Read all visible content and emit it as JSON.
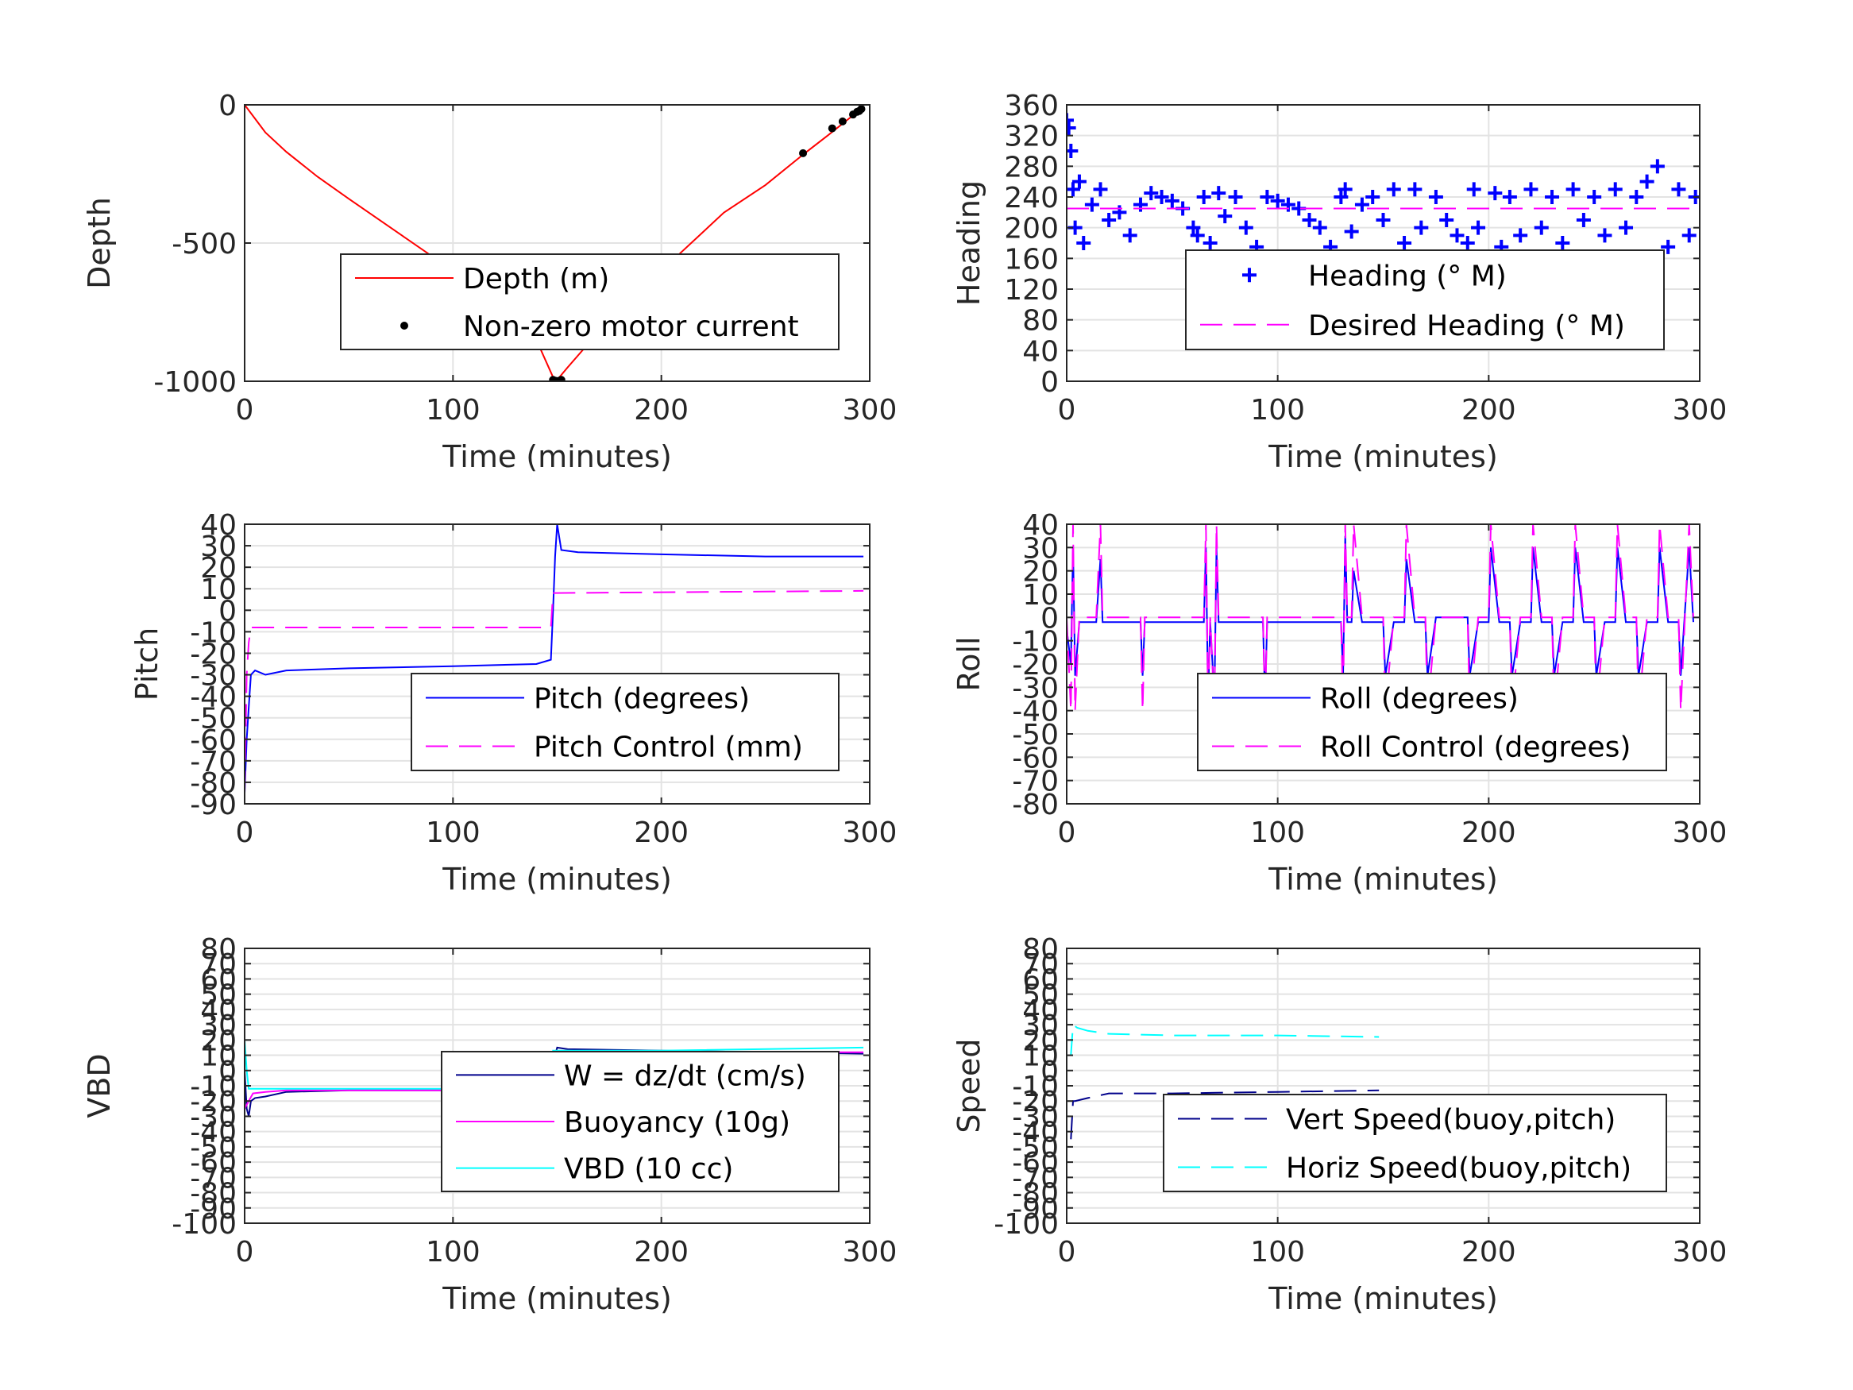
{
  "chart_data": [
    {
      "id": "depth",
      "type": "line",
      "xlabel": "Time (minutes)",
      "ylabel": "Depth",
      "xlim": [
        0,
        300
      ],
      "ylim": [
        -1000,
        0
      ],
      "xticks": [
        0,
        100,
        200,
        300
      ],
      "yticks": [
        0,
        -500,
        -1000
      ],
      "legend_position": "center-right",
      "series": [
        {
          "name": "Depth (m)",
          "style": "line",
          "color": "#ff0000",
          "x": [
            0,
            5,
            10,
            20,
            35,
            50,
            75,
            100,
            125,
            140,
            148,
            150,
            155,
            170,
            200,
            230,
            250,
            268,
            280,
            290,
            296
          ],
          "y": [
            0,
            -50,
            -100,
            -170,
            -260,
            -340,
            -470,
            -600,
            -740,
            -850,
            -985,
            -995,
            -950,
            -820,
            -600,
            -390,
            -290,
            -180,
            -110,
            -50,
            -15
          ]
        },
        {
          "name": "Non-zero motor current",
          "style": "dot",
          "color": "#000000",
          "x": [
            148,
            149,
            150,
            151,
            152,
            268,
            282,
            287,
            292,
            294,
            295,
            296
          ],
          "y": [
            -995,
            -998,
            -1000,
            -998,
            -995,
            -175,
            -85,
            -60,
            -35,
            -25,
            -22,
            -15
          ]
        }
      ]
    },
    {
      "id": "heading",
      "type": "scatter",
      "xlabel": "Time (minutes)",
      "ylabel": "Heading",
      "xlim": [
        0,
        300
      ],
      "ylim": [
        0,
        360
      ],
      "xticks": [
        0,
        100,
        200,
        300
      ],
      "yticks": [
        0,
        40,
        80,
        120,
        160,
        200,
        240,
        280,
        320,
        360
      ],
      "legend_position": "center-right",
      "series": [
        {
          "name": "Heading (° M)",
          "style": "plus",
          "color": "#0000ff",
          "x": [
            0,
            1,
            2,
            3,
            4,
            6,
            8,
            12,
            16,
            20,
            25,
            30,
            35,
            40,
            45,
            50,
            55,
            60,
            62,
            65,
            68,
            70,
            72,
            75,
            80,
            85,
            90,
            95,
            100,
            105,
            110,
            115,
            120,
            125,
            128,
            130,
            132,
            135,
            140,
            145,
            150,
            155,
            160,
            163,
            165,
            168,
            170,
            175,
            180,
            185,
            190,
            193,
            195,
            198,
            200,
            203,
            206,
            210,
            215,
            220,
            225,
            230,
            235,
            240,
            245,
            250,
            255,
            260,
            265,
            270,
            275,
            280,
            285,
            290,
            295,
            298
          ],
          "y": [
            340,
            330,
            300,
            250,
            200,
            260,
            180,
            230,
            250,
            210,
            220,
            190,
            230,
            245,
            240,
            235,
            225,
            200,
            190,
            240,
            180,
            150,
            245,
            215,
            240,
            200,
            175,
            240,
            235,
            230,
            225,
            210,
            200,
            175,
            150,
            240,
            250,
            195,
            230,
            240,
            210,
            250,
            180,
            140,
            250,
            200,
            130,
            240,
            210,
            190,
            180,
            250,
            200,
            150,
            130,
            245,
            175,
            240,
            190,
            250,
            200,
            240,
            180,
            250,
            210,
            240,
            190,
            250,
            200,
            240,
            260,
            280,
            175,
            250,
            190,
            240
          ]
        },
        {
          "name": "Desired Heading (° M)",
          "style": "dashed",
          "color": "#ff00ff",
          "x": [
            0,
            300
          ],
          "y": [
            225,
            225
          ]
        }
      ]
    },
    {
      "id": "pitch",
      "type": "line",
      "xlabel": "Time (minutes)",
      "ylabel": "Pitch",
      "xlim": [
        0,
        300
      ],
      "ylim": [
        -90,
        40
      ],
      "xticks": [
        0,
        100,
        200,
        300
      ],
      "yticks": [
        40,
        30,
        20,
        10,
        0,
        -10,
        -20,
        -30,
        -40,
        -50,
        -60,
        -70,
        -80,
        -90
      ],
      "legend_position": "center-right",
      "series": [
        {
          "name": "Pitch (degrees)",
          "style": "line",
          "color": "#0000ff",
          "x": [
            0,
            1,
            2,
            3,
            5,
            10,
            20,
            50,
            100,
            140,
            147,
            148,
            149,
            150,
            152,
            160,
            200,
            250,
            297
          ],
          "y": [
            -85,
            -60,
            -45,
            -30,
            -28,
            -30,
            -28,
            -27,
            -26,
            -25,
            -23,
            0,
            25,
            40,
            28,
            27,
            26,
            25,
            25
          ]
        },
        {
          "name": "Pitch Control (mm)",
          "style": "dashed",
          "color": "#ff00ff",
          "x": [
            0,
            1,
            2,
            3,
            146,
            147,
            148,
            149,
            297
          ],
          "y": [
            -85,
            -30,
            -15,
            -8,
            -8,
            -8,
            8,
            8,
            9
          ]
        }
      ]
    },
    {
      "id": "roll",
      "type": "line",
      "xlabel": "Time (minutes)",
      "ylabel": "Roll",
      "xlim": [
        0,
        300
      ],
      "ylim": [
        -80,
        40
      ],
      "xticks": [
        0,
        100,
        200,
        300
      ],
      "yticks": [
        40,
        30,
        20,
        10,
        0,
        -10,
        -20,
        -30,
        -40,
        -50,
        -60,
        -70,
        -80
      ],
      "legend_position": "center-right",
      "series": [
        {
          "name": "Roll (degrees)",
          "style": "line",
          "color": "#0000ff",
          "x": [
            0,
            2,
            3,
            4,
            6,
            10,
            14,
            16,
            17,
            20,
            35,
            36,
            37,
            60,
            65,
            66,
            67,
            68,
            70,
            71,
            72,
            80,
            93,
            94,
            95,
            120,
            130,
            131,
            132,
            133,
            135,
            136,
            140,
            150,
            151,
            155,
            160,
            161,
            165,
            170,
            171,
            175,
            190,
            191,
            195,
            200,
            201,
            205,
            210,
            211,
            215,
            220,
            221,
            225,
            230,
            231,
            235,
            240,
            241,
            245,
            250,
            251,
            255,
            260,
            261,
            265,
            270,
            271,
            275,
            280,
            281,
            285,
            290,
            291,
            295,
            297
          ],
          "y": [
            -5,
            -20,
            30,
            -25,
            -2,
            -2,
            -2,
            25,
            -2,
            -2,
            -2,
            -25,
            -2,
            -2,
            -2,
            30,
            -35,
            -2,
            -35,
            30,
            -2,
            -2,
            -2,
            -35,
            -2,
            -2,
            -2,
            -25,
            35,
            -2,
            -2,
            20,
            -2,
            -2,
            -25,
            -2,
            -2,
            25,
            -2,
            -2,
            -25,
            0,
            0,
            -25,
            -2,
            -2,
            30,
            -2,
            -2,
            -25,
            -2,
            -2,
            30,
            -2,
            -2,
            -25,
            -2,
            -2,
            30,
            -2,
            -2,
            -25,
            -2,
            -2,
            30,
            -2,
            -2,
            -25,
            -2,
            -2,
            30,
            -2,
            -2,
            -25,
            30,
            -2
          ]
        },
        {
          "name": "Roll Control (degrees)",
          "style": "dashed",
          "color": "#ff00ff",
          "x": [
            0,
            2,
            3,
            4,
            6,
            10,
            14,
            16,
            17,
            20,
            35,
            36,
            37,
            60,
            65,
            66,
            67,
            68,
            70,
            71,
            72,
            80,
            93,
            94,
            95,
            120,
            130,
            131,
            132,
            133,
            135,
            136,
            140,
            150,
            151,
            155,
            160,
            161,
            165,
            170,
            171,
            175,
            190,
            191,
            195,
            200,
            201,
            205,
            210,
            211,
            215,
            220,
            221,
            225,
            230,
            231,
            235,
            240,
            241,
            245,
            250,
            251,
            255,
            260,
            261,
            265,
            270,
            271,
            275,
            280,
            281,
            285,
            290,
            291,
            295,
            297
          ],
          "y": [
            0,
            -40,
            40,
            -40,
            0,
            0,
            0,
            40,
            0,
            0,
            0,
            -40,
            0,
            0,
            0,
            40,
            -40,
            0,
            -40,
            40,
            0,
            0,
            0,
            -40,
            0,
            0,
            0,
            -40,
            40,
            0,
            0,
            40,
            0,
            0,
            -40,
            0,
            0,
            40,
            0,
            0,
            -40,
            0,
            0,
            -40,
            0,
            0,
            40,
            0,
            0,
            -40,
            0,
            0,
            40,
            0,
            0,
            -40,
            0,
            0,
            40,
            0,
            0,
            -40,
            0,
            0,
            40,
            0,
            0,
            -40,
            0,
            0,
            40,
            0,
            0,
            -40,
            40,
            0
          ]
        }
      ]
    },
    {
      "id": "vbd",
      "type": "line",
      "xlabel": "Time (minutes)",
      "ylabel": "VBD",
      "xlim": [
        0,
        300
      ],
      "ylim": [
        -100,
        80
      ],
      "xticks": [
        0,
        100,
        200,
        300
      ],
      "yticks": [
        80,
        70,
        60,
        50,
        40,
        30,
        20,
        10,
        0,
        -10,
        -20,
        -30,
        -40,
        -50,
        -60,
        -70,
        -80,
        -90,
        -100
      ],
      "legend_position": "center-right",
      "series": [
        {
          "name": "W = dz/dt (cm/s)",
          "style": "line",
          "color": "#00008b",
          "x": [
            0,
            1,
            2,
            3,
            5,
            10,
            20,
            50,
            100,
            140,
            147,
            148,
            150,
            155,
            200,
            250,
            297
          ],
          "y": [
            0,
            -25,
            -30,
            -20,
            -18,
            -17,
            -14,
            -13,
            -13,
            -13,
            -13,
            5,
            15,
            14,
            13,
            12,
            11
          ]
        },
        {
          "name": "Buoyancy (10g)",
          "style": "line",
          "color": "#ff00ff",
          "x": [
            0,
            2,
            4,
            10,
            20,
            50,
            100,
            147,
            148,
            150,
            200,
            297
          ],
          "y": [
            -25,
            -20,
            -15,
            -14,
            -13,
            -13,
            -13,
            -13,
            10,
            12,
            12,
            12
          ]
        },
        {
          "name": "VBD (10 cc)",
          "style": "line",
          "color": "#00ffff",
          "x": [
            0,
            1,
            2,
            4,
            10,
            50,
            100,
            147,
            148,
            150,
            200,
            297
          ],
          "y": [
            20,
            0,
            -12,
            -12,
            -12,
            -12,
            -12,
            -12,
            13,
            13,
            13,
            15
          ]
        }
      ]
    },
    {
      "id": "speed",
      "type": "line",
      "xlabel": "Time (minutes)",
      "ylabel": "Speed",
      "xlim": [
        0,
        300
      ],
      "ylim": [
        -100,
        80
      ],
      "xticks": [
        0,
        100,
        200,
        300
      ],
      "yticks": [
        80,
        70,
        60,
        50,
        40,
        30,
        20,
        10,
        0,
        -10,
        -20,
        -30,
        -40,
        -50,
        -60,
        -70,
        -80,
        -90,
        -100
      ],
      "legend_position": "center-right",
      "series": [
        {
          "name": "Vert Speed(buoy,pitch)",
          "style": "dashed",
          "color": "#00008b",
          "x": [
            2,
            3,
            4,
            10,
            20,
            50,
            100,
            148
          ],
          "y": [
            -45,
            -20,
            -20,
            -18,
            -15,
            -15,
            -14,
            -13
          ]
        },
        {
          "name": "Horiz Speed(buoy,pitch)",
          "style": "dashed",
          "color": "#00ffff",
          "x": [
            2,
            3,
            5,
            10,
            20,
            50,
            100,
            148
          ],
          "y": [
            10,
            30,
            28,
            26,
            24,
            23,
            23,
            22
          ]
        }
      ]
    }
  ]
}
